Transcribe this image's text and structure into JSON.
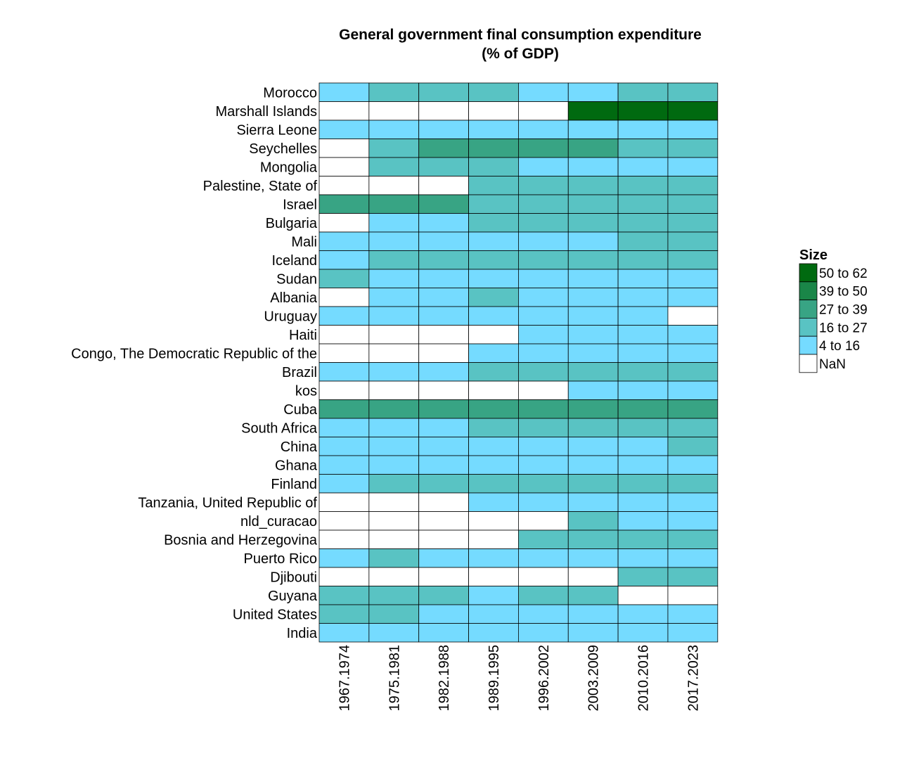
{
  "chart_data": {
    "type": "heatmap",
    "title": [
      "General government final consumption expenditure",
      "(% of GDP)"
    ],
    "xlabel": "",
    "ylabel": "",
    "columns": [
      "1967.1974",
      "1975.1981",
      "1982.1988",
      "1989.1995",
      "1996.2002",
      "2003.2009",
      "2010.2016",
      "2017.2023"
    ],
    "rows": [
      {
        "name": "Morocco",
        "values": [
          1,
          2,
          2,
          2,
          1,
          1,
          2,
          2
        ]
      },
      {
        "name": "Marshall Islands",
        "values": [
          0,
          0,
          0,
          0,
          0,
          5,
          5,
          5
        ]
      },
      {
        "name": "Sierra Leone",
        "values": [
          1,
          1,
          1,
          1,
          1,
          1,
          1,
          1
        ]
      },
      {
        "name": "Seychelles",
        "values": [
          0,
          2,
          3,
          3,
          3,
          3,
          2,
          2
        ]
      },
      {
        "name": "Mongolia",
        "values": [
          0,
          2,
          2,
          2,
          1,
          1,
          1,
          1
        ]
      },
      {
        "name": "Palestine, State of",
        "values": [
          0,
          0,
          0,
          2,
          2,
          2,
          2,
          2
        ]
      },
      {
        "name": "Israel",
        "values": [
          3,
          3,
          3,
          2,
          2,
          2,
          2,
          2
        ]
      },
      {
        "name": "Bulgaria",
        "values": [
          0,
          1,
          1,
          2,
          2,
          2,
          2,
          2
        ]
      },
      {
        "name": "Mali",
        "values": [
          1,
          1,
          1,
          1,
          1,
          1,
          2,
          2
        ]
      },
      {
        "name": "Iceland",
        "values": [
          1,
          2,
          2,
          2,
          2,
          2,
          2,
          2
        ]
      },
      {
        "name": "Sudan",
        "values": [
          2,
          1,
          1,
          1,
          1,
          1,
          1,
          1
        ]
      },
      {
        "name": "Albania",
        "values": [
          0,
          1,
          1,
          2,
          1,
          1,
          1,
          1
        ]
      },
      {
        "name": "Uruguay",
        "values": [
          1,
          1,
          1,
          1,
          1,
          1,
          1,
          0
        ]
      },
      {
        "name": "Haiti",
        "values": [
          0,
          0,
          0,
          0,
          1,
          1,
          1,
          1
        ]
      },
      {
        "name": "Congo, The Democratic Republic of the",
        "values": [
          0,
          0,
          0,
          1,
          1,
          1,
          1,
          1
        ]
      },
      {
        "name": "Brazil",
        "values": [
          1,
          1,
          1,
          2,
          2,
          2,
          2,
          2
        ]
      },
      {
        "name": "kos",
        "values": [
          0,
          0,
          0,
          0,
          0,
          1,
          1,
          1
        ]
      },
      {
        "name": "Cuba",
        "values": [
          3,
          3,
          3,
          3,
          3,
          3,
          3,
          3
        ]
      },
      {
        "name": "South Africa",
        "values": [
          1,
          1,
          1,
          2,
          2,
          2,
          2,
          2
        ]
      },
      {
        "name": "China",
        "values": [
          1,
          1,
          1,
          1,
          1,
          1,
          1,
          2
        ]
      },
      {
        "name": "Ghana",
        "values": [
          1,
          1,
          1,
          1,
          1,
          1,
          1,
          1
        ]
      },
      {
        "name": "Finland",
        "values": [
          1,
          2,
          2,
          2,
          2,
          2,
          2,
          2
        ]
      },
      {
        "name": "Tanzania, United Republic of",
        "values": [
          0,
          0,
          0,
          1,
          1,
          1,
          1,
          1
        ]
      },
      {
        "name": "nld_curacao",
        "values": [
          0,
          0,
          0,
          0,
          0,
          2,
          1,
          1
        ]
      },
      {
        "name": "Bosnia and Herzegovina",
        "values": [
          0,
          0,
          0,
          0,
          2,
          2,
          2,
          2
        ]
      },
      {
        "name": "Puerto Rico",
        "values": [
          1,
          2,
          1,
          1,
          1,
          1,
          1,
          1
        ]
      },
      {
        "name": "Djibouti",
        "values": [
          0,
          0,
          0,
          0,
          0,
          0,
          2,
          2
        ]
      },
      {
        "name": "Guyana",
        "values": [
          2,
          2,
          2,
          1,
          2,
          2,
          0,
          0
        ]
      },
      {
        "name": "United States",
        "values": [
          2,
          2,
          1,
          1,
          1,
          1,
          1,
          1
        ]
      },
      {
        "name": "India",
        "values": [
          1,
          1,
          1,
          1,
          1,
          1,
          1,
          1
        ]
      }
    ],
    "legend": {
      "title": "Size",
      "placement": "right",
      "bins": [
        {
          "label": "50 to 62",
          "color": "#006a10"
        },
        {
          "label": "39 to 50",
          "color": "#1a8648"
        },
        {
          "label": "27 to 39",
          "color": "#38a484"
        },
        {
          "label": "16 to 27",
          "color": "#59c3c3"
        },
        {
          "label": "4 to 16",
          "color": "#75dbff"
        },
        {
          "label": "NaN",
          "color": "#ffffff"
        }
      ]
    },
    "value_encoding": {
      "0": "NaN",
      "1": "4 to 16",
      "2": "16 to 27",
      "3": "27 to 39",
      "4": "39 to 50",
      "5": "50 to 62"
    }
  }
}
